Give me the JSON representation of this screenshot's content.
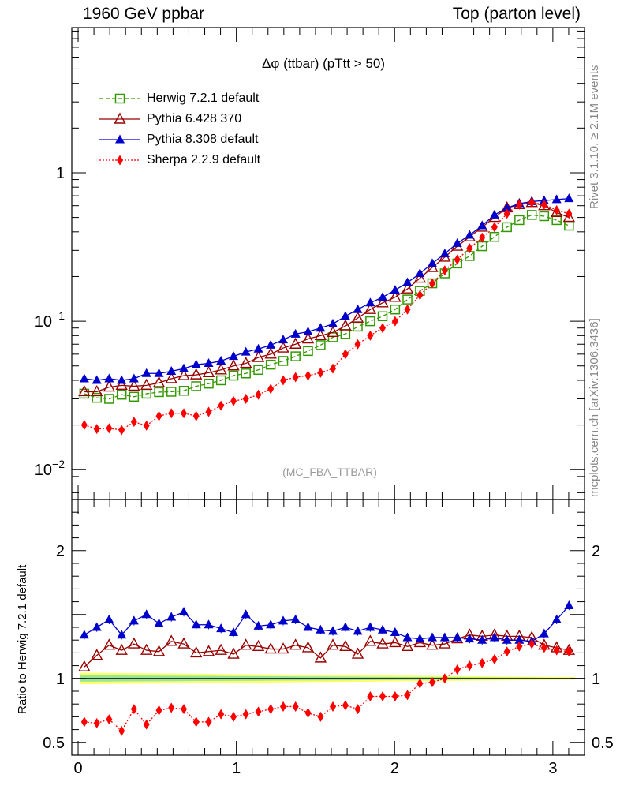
{
  "header": {
    "left": "1960 GeV ppbar",
    "right": "Top (parton level)"
  },
  "side_labels": {
    "rivet": "Rivet 3.1.10, ≥ 2.1M events",
    "mcplots": "mcplots.cern.ch [arXiv:1306.3436]"
  },
  "watermark": "(MC_FBA_TTBAR)",
  "chart_data": {
    "type": "line",
    "title": "Δφ (ttbar) (pTtt > 50)",
    "main_panel": {
      "yscale": "log",
      "ylim": [
        0.0063,
        9.5
      ],
      "yticks": [
        {
          "value": 0.01,
          "label": "10−2"
        },
        {
          "value": 0.1,
          "label": "10−1"
        },
        {
          "value": 1,
          "label": "1"
        }
      ]
    },
    "ratio_panel": {
      "ylabel": "Ratio to Herwig 7.2.1 default",
      "ylim": [
        0.4,
        2.4
      ],
      "yticks": [
        0.5,
        1,
        2
      ]
    },
    "xlim": [
      -0.04,
      3.2
    ],
    "xticks": [
      0,
      1,
      2,
      3
    ],
    "legend_position": "top-left",
    "x": [
      0.039,
      0.118,
      0.196,
      0.275,
      0.353,
      0.432,
      0.511,
      0.589,
      0.668,
      0.746,
      0.825,
      0.903,
      0.982,
      1.06,
      1.139,
      1.217,
      1.296,
      1.374,
      1.453,
      1.532,
      1.61,
      1.689,
      1.767,
      1.846,
      1.924,
      2.003,
      2.081,
      2.16,
      2.238,
      2.317,
      2.396,
      2.474,
      2.553,
      2.631,
      2.71,
      2.788,
      2.867,
      2.945,
      3.024,
      3.102
    ],
    "series": [
      {
        "name": "Herwig 7.2.1 default",
        "color": "#339900",
        "marker": "open-square",
        "line": "dashed",
        "values": [
          0.0325,
          0.0305,
          0.03,
          0.032,
          0.031,
          0.0325,
          0.0333,
          0.0335,
          0.034,
          0.0365,
          0.038,
          0.04,
          0.043,
          0.0445,
          0.047,
          0.051,
          0.054,
          0.058,
          0.063,
          0.069,
          0.078,
          0.082,
          0.092,
          0.1,
          0.108,
          0.12,
          0.14,
          0.16,
          0.18,
          0.21,
          0.245,
          0.275,
          0.32,
          0.37,
          0.43,
          0.48,
          0.52,
          0.51,
          0.48,
          0.44
        ],
        "ratio": [
          1,
          1,
          1,
          1,
          1,
          1,
          1,
          1,
          1,
          1,
          1,
          1,
          1,
          1,
          1,
          1,
          1,
          1,
          1,
          1,
          1,
          1,
          1,
          1,
          1,
          1,
          1,
          1,
          1,
          1,
          1,
          1,
          1,
          1,
          1,
          1,
          1,
          1,
          1,
          1
        ]
      },
      {
        "name": "Pythia 6.428 370",
        "color": "#990000",
        "marker": "open-triangle",
        "line": "solid",
        "values": [
          0.0335,
          0.0335,
          0.036,
          0.037,
          0.0365,
          0.037,
          0.0385,
          0.041,
          0.043,
          0.0435,
          0.045,
          0.047,
          0.05,
          0.052,
          0.057,
          0.06,
          0.066,
          0.07,
          0.076,
          0.08,
          0.084,
          0.093,
          0.105,
          0.12,
          0.133,
          0.145,
          0.165,
          0.195,
          0.23,
          0.27,
          0.32,
          0.37,
          0.43,
          0.5,
          0.58,
          0.61,
          0.63,
          0.6,
          0.54,
          0.5
        ],
        "ratio": [
          1.09,
          1.18,
          1.26,
          1.22,
          1.27,
          1.22,
          1.21,
          1.29,
          1.27,
          1.2,
          1.21,
          1.22,
          1.19,
          1.26,
          1.25,
          1.23,
          1.23,
          1.26,
          1.24,
          1.16,
          1.26,
          1.25,
          1.19,
          1.29,
          1.27,
          1.28,
          1.25,
          1.28,
          1.26,
          1.27,
          1.31,
          1.34,
          1.33,
          1.34,
          1.33,
          1.33,
          1.32,
          1.26,
          1.24,
          1.22
        ]
      },
      {
        "name": "Pythia 8.308 default",
        "color": "#0000cc",
        "marker": "filled-triangle",
        "line": "solid",
        "values": [
          0.041,
          0.04,
          0.041,
          0.04,
          0.041,
          0.0445,
          0.0445,
          0.046,
          0.048,
          0.051,
          0.052,
          0.054,
          0.058,
          0.062,
          0.065,
          0.069,
          0.075,
          0.082,
          0.085,
          0.09,
          0.096,
          0.108,
          0.12,
          0.133,
          0.145,
          0.162,
          0.182,
          0.21,
          0.245,
          0.285,
          0.335,
          0.38,
          0.44,
          0.52,
          0.58,
          0.62,
          0.64,
          0.65,
          0.66,
          0.67
        ],
        "ratio": [
          1.34,
          1.4,
          1.46,
          1.34,
          1.45,
          1.5,
          1.43,
          1.48,
          1.52,
          1.42,
          1.42,
          1.39,
          1.36,
          1.5,
          1.41,
          1.42,
          1.45,
          1.46,
          1.4,
          1.38,
          1.37,
          1.4,
          1.37,
          1.4,
          1.38,
          1.36,
          1.32,
          1.31,
          1.32,
          1.32,
          1.32,
          1.31,
          1.3,
          1.32,
          1.3,
          1.3,
          1.29,
          1.35,
          1.46,
          1.57
        ]
      },
      {
        "name": "Sherpa 2.2.9 default",
        "color": "#ff0000",
        "marker": "filled-diamond",
        "line": "dotted",
        "values": [
          0.02,
          0.0188,
          0.019,
          0.0185,
          0.021,
          0.0198,
          0.023,
          0.024,
          0.024,
          0.023,
          0.0245,
          0.027,
          0.029,
          0.03,
          0.032,
          0.035,
          0.04,
          0.042,
          0.043,
          0.045,
          0.048,
          0.06,
          0.07,
          0.08,
          0.09,
          0.1,
          0.12,
          0.15,
          0.18,
          0.22,
          0.26,
          0.31,
          0.365,
          0.43,
          0.53,
          0.61,
          0.63,
          0.61,
          0.56,
          0.53
        ],
        "ratio": [
          0.66,
          0.65,
          0.68,
          0.59,
          0.76,
          0.64,
          0.75,
          0.77,
          0.76,
          0.66,
          0.66,
          0.72,
          0.7,
          0.72,
          0.74,
          0.76,
          0.78,
          0.78,
          0.73,
          0.7,
          0.78,
          0.79,
          0.76,
          0.86,
          0.86,
          0.86,
          0.87,
          0.96,
          0.97,
          1.0,
          1.07,
          1.1,
          1.12,
          1.15,
          1.21,
          1.25,
          1.27,
          1.24,
          1.22,
          1.21
        ]
      }
    ]
  }
}
